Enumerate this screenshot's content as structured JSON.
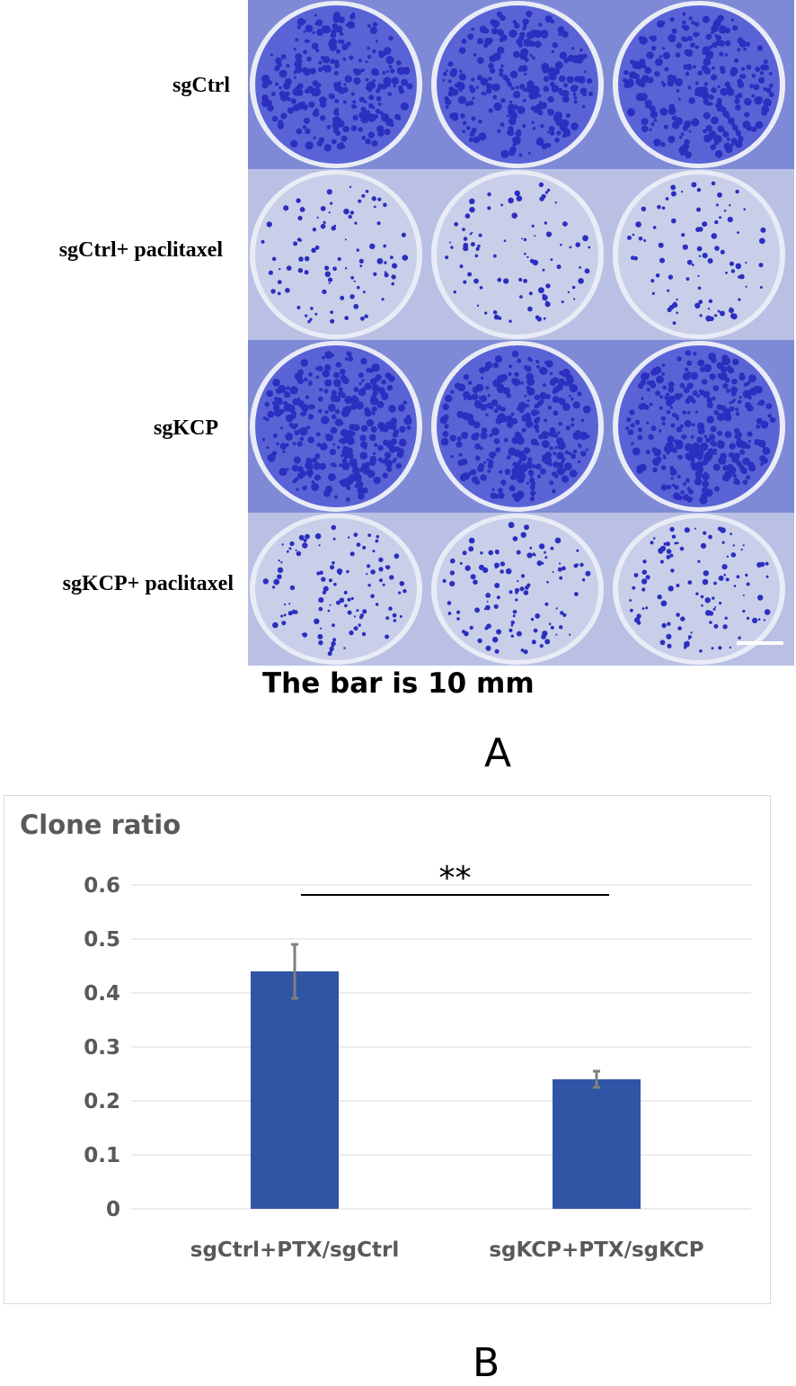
{
  "panel_a": {
    "row_labels": [
      "sgCtrl",
      "sgCtrl+ paclitaxel",
      "sgKCP",
      "sgKCP+ paclitaxel"
    ],
    "scale_bar_caption": "The bar is 10 mm",
    "panel_letter": "A",
    "plate_colors": {
      "dense_stain": "#5a63d6",
      "light_stain": "#c9cfe9",
      "colony": "#2b2fbf",
      "plate_rim": "#e9ecf6"
    }
  },
  "panel_b": {
    "panel_letter": "B",
    "bar_color": "#2f55a4",
    "error_color": "#7f7f7f",
    "grid_color": "#d9d9d9"
  },
  "chart_data": {
    "type": "bar",
    "title": "Clone ratio",
    "categories": [
      "sgCtrl+PTX/sgCtrl",
      "sgKCP+PTX/sgKCP"
    ],
    "values": [
      0.44,
      0.24
    ],
    "errors": [
      0.05,
      0.015
    ],
    "ylim": [
      0,
      0.6
    ],
    "yticks": [
      "0",
      "0.1",
      "0.2",
      "0.3",
      "0.4",
      "0.5",
      "0.6"
    ],
    "grid": true,
    "significance": {
      "label": "**",
      "between": [
        0,
        1
      ]
    }
  }
}
